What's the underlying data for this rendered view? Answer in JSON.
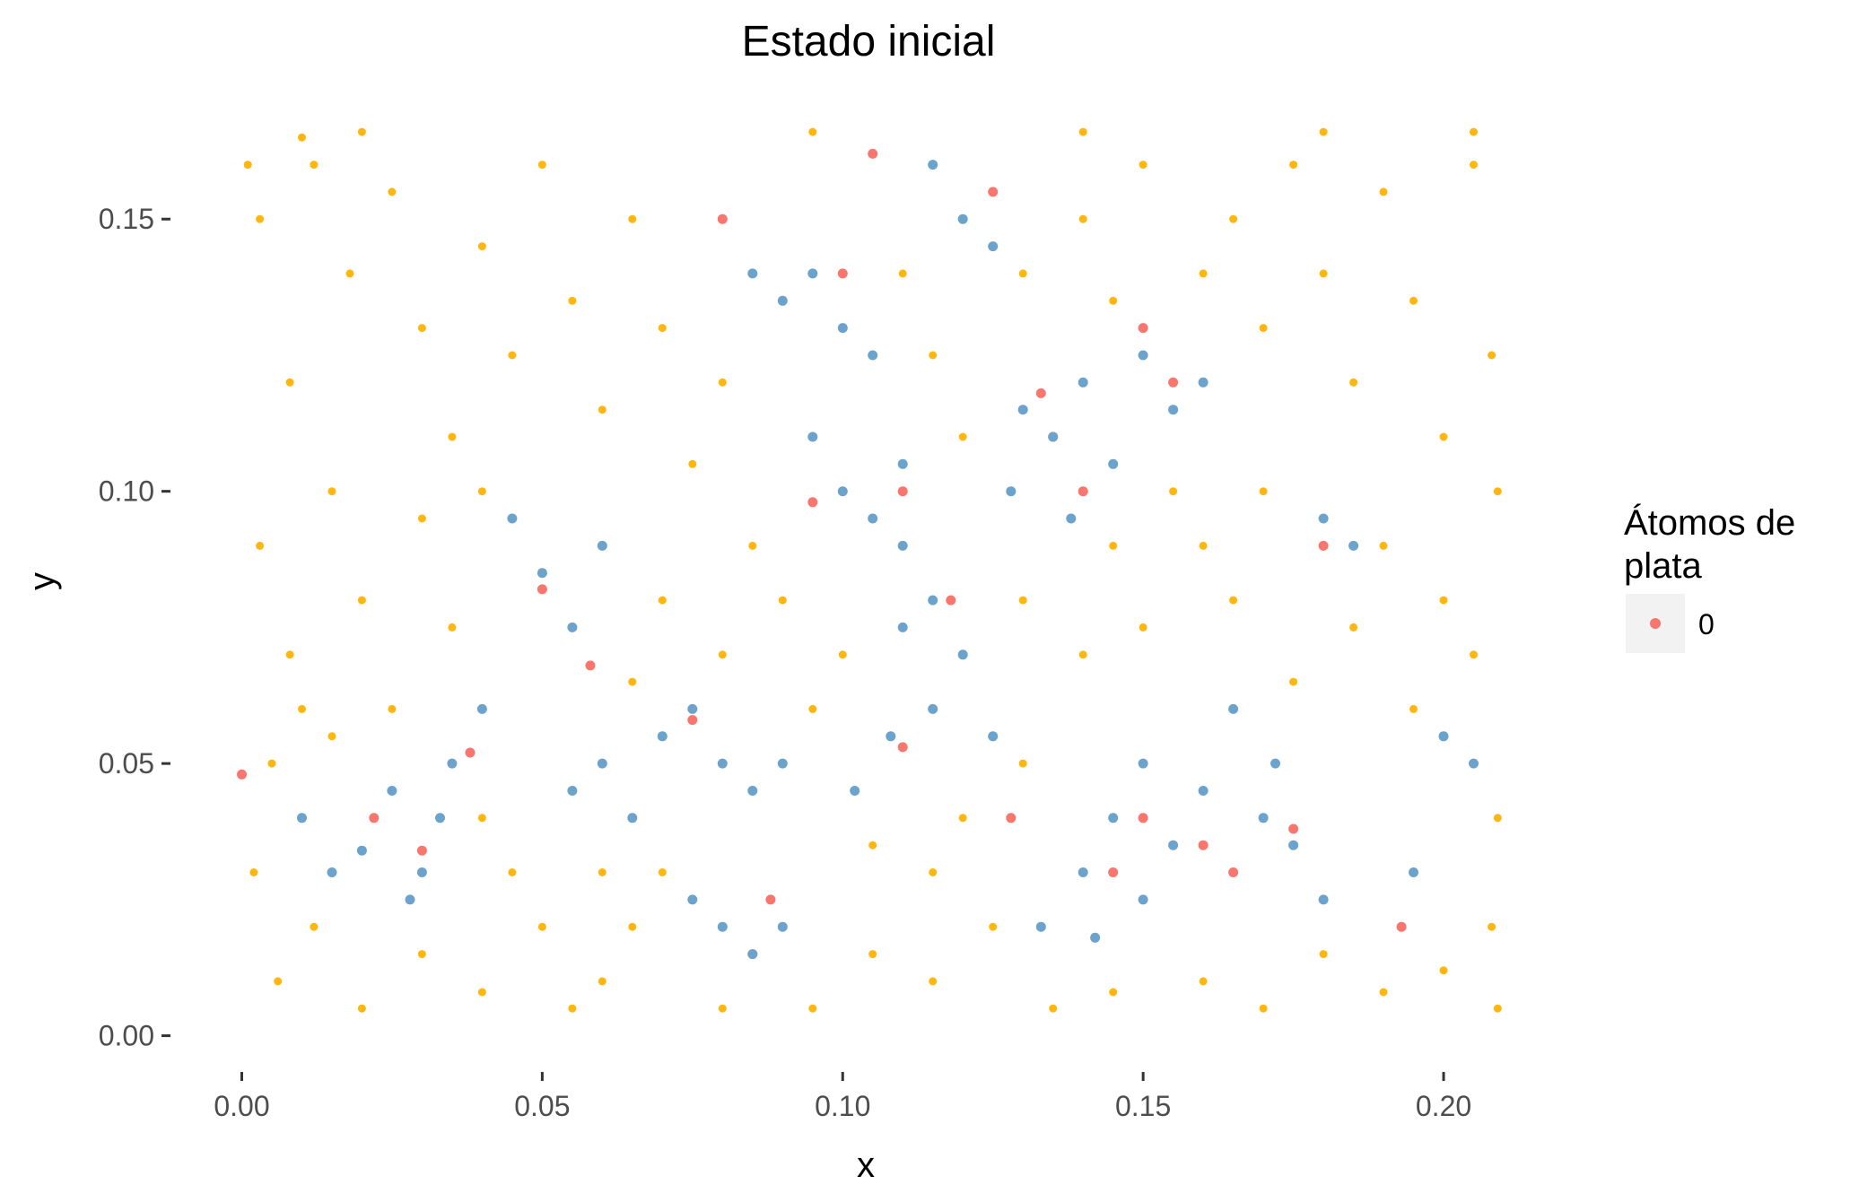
{
  "chart_data": {
    "type": "scatter",
    "title": "Estado inicial",
    "xlabel": "x",
    "ylabel": "y",
    "xlim": [
      -0.005,
      0.21
    ],
    "ylim": [
      -0.006,
      0.168
    ],
    "x_ticks": [
      0.0,
      0.05,
      0.1,
      0.15,
      0.2
    ],
    "x_tick_labels": [
      "0.00",
      "0.05",
      "0.10",
      "0.15",
      "0.20"
    ],
    "y_ticks": [
      0.0,
      0.05,
      0.1,
      0.15
    ],
    "y_tick_labels": [
      "0.00",
      "0.05",
      "0.10",
      "0.15"
    ],
    "grid": false,
    "legend": {
      "title_lines": [
        "Átomos de",
        "plata"
      ],
      "position": "right",
      "entries": [
        {
          "label": "0",
          "color": "#F8766D"
        }
      ]
    },
    "colors": {
      "background_atoms": "#FFB70F",
      "cluster_atoms": "#6BA3CC",
      "silver": "#F8766D",
      "legend_key_bg": "#F2F2F2"
    },
    "series": [
      {
        "color": "#6BA3CC",
        "points": [
          [
            0.02,
            0.034
          ],
          [
            0.03,
            0.03
          ],
          [
            0.01,
            0.04
          ],
          [
            0.025,
            0.045
          ],
          [
            0.04,
            0.06
          ],
          [
            0.035,
            0.05
          ],
          [
            0.05,
            0.085
          ],
          [
            0.055,
            0.075
          ],
          [
            0.06,
            0.09
          ],
          [
            0.045,
            0.095
          ],
          [
            0.07,
            0.055
          ],
          [
            0.075,
            0.06
          ],
          [
            0.08,
            0.05
          ],
          [
            0.085,
            0.045
          ],
          [
            0.09,
            0.05
          ],
          [
            0.075,
            0.025
          ],
          [
            0.08,
            0.02
          ],
          [
            0.085,
            0.015
          ],
          [
            0.09,
            0.02
          ],
          [
            0.095,
            0.14
          ],
          [
            0.1,
            0.13
          ],
          [
            0.09,
            0.135
          ],
          [
            0.105,
            0.125
          ],
          [
            0.1,
            0.1
          ],
          [
            0.105,
            0.095
          ],
          [
            0.11,
            0.09
          ],
          [
            0.115,
            0.08
          ],
          [
            0.11,
            0.075
          ],
          [
            0.12,
            0.07
          ],
          [
            0.115,
            0.06
          ],
          [
            0.125,
            0.055
          ],
          [
            0.13,
            0.115
          ],
          [
            0.135,
            0.11
          ],
          [
            0.14,
            0.12
          ],
          [
            0.145,
            0.105
          ],
          [
            0.15,
            0.125
          ],
          [
            0.155,
            0.115
          ],
          [
            0.15,
            0.05
          ],
          [
            0.145,
            0.04
          ],
          [
            0.14,
            0.03
          ],
          [
            0.15,
            0.025
          ],
          [
            0.155,
            0.035
          ],
          [
            0.16,
            0.045
          ],
          [
            0.17,
            0.04
          ],
          [
            0.175,
            0.035
          ],
          [
            0.18,
            0.025
          ],
          [
            0.185,
            0.09
          ],
          [
            0.18,
            0.095
          ],
          [
            0.195,
            0.03
          ],
          [
            0.2,
            0.055
          ],
          [
            0.205,
            0.05
          ],
          [
            0.12,
            0.15
          ],
          [
            0.125,
            0.145
          ],
          [
            0.115,
            0.16
          ],
          [
            0.085,
            0.14
          ],
          [
            0.095,
            0.11
          ],
          [
            0.11,
            0.105
          ],
          [
            0.128,
            0.1
          ],
          [
            0.138,
            0.095
          ],
          [
            0.16,
            0.12
          ],
          [
            0.165,
            0.06
          ],
          [
            0.172,
            0.05
          ],
          [
            0.06,
            0.05
          ],
          [
            0.065,
            0.04
          ],
          [
            0.055,
            0.045
          ],
          [
            0.015,
            0.03
          ],
          [
            0.028,
            0.025
          ],
          [
            0.033,
            0.04
          ],
          [
            0.102,
            0.045
          ],
          [
            0.108,
            0.055
          ],
          [
            0.133,
            0.02
          ],
          [
            0.142,
            0.018
          ]
        ]
      },
      {
        "color": "#F8766D",
        "points": [
          [
            0.0,
            0.048
          ],
          [
            0.022,
            0.04
          ],
          [
            0.03,
            0.034
          ],
          [
            0.05,
            0.082
          ],
          [
            0.058,
            0.068
          ],
          [
            0.075,
            0.058
          ],
          [
            0.08,
            0.15
          ],
          [
            0.1,
            0.14
          ],
          [
            0.11,
            0.1
          ],
          [
            0.125,
            0.155
          ],
          [
            0.135,
            0.11
          ],
          [
            0.14,
            0.1
          ],
          [
            0.15,
            0.13
          ],
          [
            0.155,
            0.12
          ],
          [
            0.145,
            0.03
          ],
          [
            0.15,
            0.04
          ],
          [
            0.16,
            0.035
          ],
          [
            0.175,
            0.038
          ],
          [
            0.18,
            0.09
          ],
          [
            0.193,
            0.02
          ],
          [
            0.085,
            0.015
          ],
          [
            0.088,
            0.025
          ],
          [
            0.11,
            0.053
          ],
          [
            0.118,
            0.08
          ],
          [
            0.128,
            0.04
          ],
          [
            0.165,
            0.03
          ],
          [
            0.038,
            0.052
          ],
          [
            0.095,
            0.098
          ],
          [
            0.133,
            0.118
          ],
          [
            0.105,
            0.162
          ]
        ]
      },
      {
        "color": "#FFB70F",
        "points": [
          [
            0.003,
            0.15
          ],
          [
            0.008,
            0.12
          ],
          [
            0.012,
            0.16
          ],
          [
            0.018,
            0.14
          ],
          [
            0.025,
            0.155
          ],
          [
            0.03,
            0.13
          ],
          [
            0.035,
            0.11
          ],
          [
            0.04,
            0.145
          ],
          [
            0.045,
            0.125
          ],
          [
            0.05,
            0.16
          ],
          [
            0.055,
            0.135
          ],
          [
            0.06,
            0.115
          ],
          [
            0.065,
            0.15
          ],
          [
            0.07,
            0.13
          ],
          [
            0.075,
            0.105
          ],
          [
            0.08,
            0.12
          ],
          [
            0.003,
            0.09
          ],
          [
            0.008,
            0.07
          ],
          [
            0.015,
            0.1
          ],
          [
            0.02,
            0.08
          ],
          [
            0.025,
            0.06
          ],
          [
            0.03,
            0.095
          ],
          [
            0.035,
            0.075
          ],
          [
            0.04,
            0.1
          ],
          [
            0.002,
            0.03
          ],
          [
            0.006,
            0.01
          ],
          [
            0.012,
            0.02
          ],
          [
            0.02,
            0.005
          ],
          [
            0.03,
            0.015
          ],
          [
            0.04,
            0.008
          ],
          [
            0.05,
            0.02
          ],
          [
            0.06,
            0.01
          ],
          [
            0.07,
            0.03
          ],
          [
            0.08,
            0.005
          ],
          [
            0.095,
            0.005
          ],
          [
            0.105,
            0.015
          ],
          [
            0.115,
            0.01
          ],
          [
            0.125,
            0.02
          ],
          [
            0.135,
            0.005
          ],
          [
            0.145,
            0.008
          ],
          [
            0.16,
            0.01
          ],
          [
            0.17,
            0.005
          ],
          [
            0.18,
            0.015
          ],
          [
            0.19,
            0.008
          ],
          [
            0.2,
            0.012
          ],
          [
            0.208,
            0.02
          ],
          [
            0.165,
            0.15
          ],
          [
            0.17,
            0.13
          ],
          [
            0.175,
            0.16
          ],
          [
            0.18,
            0.14
          ],
          [
            0.185,
            0.12
          ],
          [
            0.19,
            0.155
          ],
          [
            0.195,
            0.135
          ],
          [
            0.2,
            0.11
          ],
          [
            0.205,
            0.16
          ],
          [
            0.208,
            0.125
          ],
          [
            0.17,
            0.1
          ],
          [
            0.19,
            0.09
          ],
          [
            0.2,
            0.08
          ],
          [
            0.205,
            0.07
          ],
          [
            0.195,
            0.06
          ],
          [
            0.185,
            0.075
          ],
          [
            0.175,
            0.065
          ],
          [
            0.16,
            0.09
          ],
          [
            0.165,
            0.08
          ],
          [
            0.15,
            0.075
          ],
          [
            0.14,
            0.07
          ],
          [
            0.13,
            0.08
          ],
          [
            0.145,
            0.09
          ],
          [
            0.155,
            0.1
          ],
          [
            0.09,
            0.08
          ],
          [
            0.085,
            0.09
          ],
          [
            0.08,
            0.07
          ],
          [
            0.07,
            0.08
          ],
          [
            0.065,
            0.065
          ],
          [
            0.095,
            0.06
          ],
          [
            0.1,
            0.07
          ],
          [
            0.105,
            0.035
          ],
          [
            0.115,
            0.03
          ],
          [
            0.12,
            0.04
          ],
          [
            0.13,
            0.05
          ],
          [
            0.11,
            0.14
          ],
          [
            0.115,
            0.125
          ],
          [
            0.12,
            0.11
          ],
          [
            0.13,
            0.14
          ],
          [
            0.14,
            0.15
          ],
          [
            0.15,
            0.16
          ],
          [
            0.16,
            0.14
          ],
          [
            0.145,
            0.135
          ],
          [
            0.06,
            0.03
          ],
          [
            0.065,
            0.02
          ],
          [
            0.055,
            0.005
          ],
          [
            0.045,
            0.03
          ],
          [
            0.04,
            0.04
          ],
          [
            0.015,
            0.055
          ],
          [
            0.01,
            0.06
          ],
          [
            0.005,
            0.05
          ],
          [
            0.001,
            0.16
          ],
          [
            0.01,
            0.165
          ],
          [
            0.02,
            0.166
          ],
          [
            0.095,
            0.166
          ],
          [
            0.14,
            0.166
          ],
          [
            0.18,
            0.166
          ],
          [
            0.205,
            0.166
          ],
          [
            0.209,
            0.1
          ],
          [
            0.209,
            0.04
          ],
          [
            0.209,
            0.005
          ]
        ]
      }
    ]
  }
}
